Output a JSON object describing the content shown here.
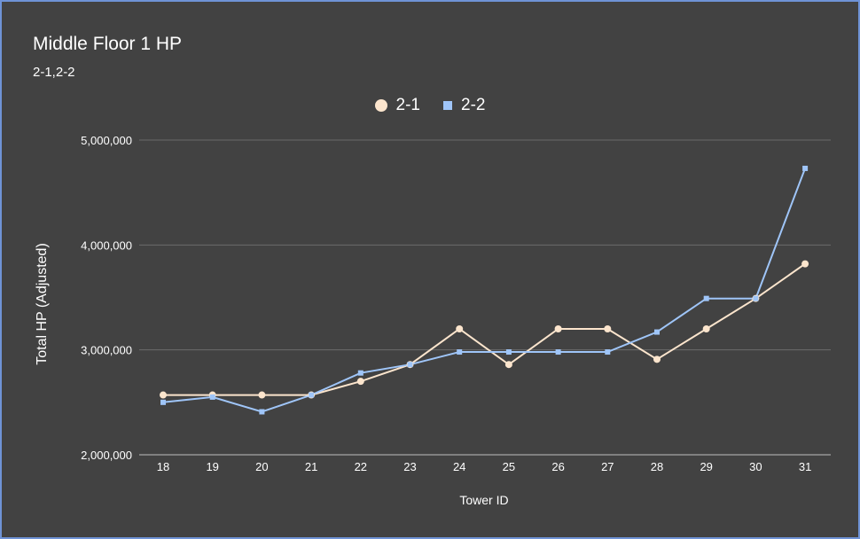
{
  "chart_data": {
    "type": "line",
    "title": "Middle Floor 1 HP",
    "subtitle": "2-1,2-2",
    "xlabel": "Tower ID",
    "ylabel": "Total HP (Adjusted)",
    "categories": [
      "18",
      "19",
      "20",
      "21",
      "22",
      "23",
      "24",
      "25",
      "26",
      "27",
      "28",
      "29",
      "30",
      "31"
    ],
    "series": [
      {
        "name": "2-1",
        "color": "#fce5cd",
        "marker": "circle",
        "values": [
          2570000,
          2570000,
          2570000,
          2570000,
          2700000,
          2860000,
          3200000,
          2860000,
          3200000,
          3200000,
          2910000,
          3200000,
          3490000,
          3820000
        ]
      },
      {
        "name": "2-2",
        "color": "#9fc5f8",
        "marker": "square",
        "values": [
          2500000,
          2550000,
          2410000,
          2570000,
          2780000,
          2860000,
          2980000,
          2980000,
          2980000,
          2980000,
          3170000,
          3490000,
          3490000,
          4730000
        ]
      }
    ],
    "ylim": [
      2000000,
      5000000
    ],
    "yticks": [
      2000000,
      3000000,
      4000000,
      5000000
    ],
    "ytick_labels": [
      "2,000,000",
      "3,000,000",
      "4,000,000",
      "5,000,000"
    ],
    "grid": true,
    "legend_position": "top"
  },
  "colors": {
    "background": "#424242",
    "border": "#6f93d6",
    "grid": "#6b6b6b",
    "text": "#ffffff"
  }
}
